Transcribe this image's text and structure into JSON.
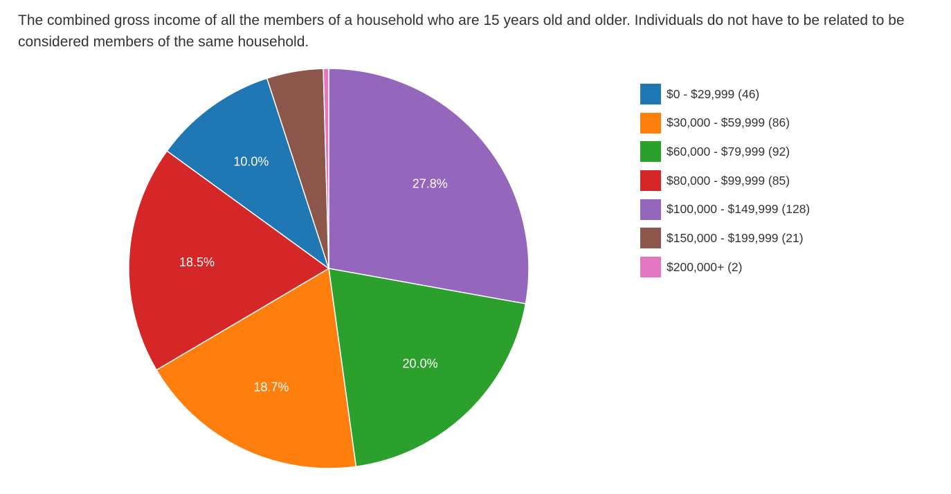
{
  "chart_data": {
    "type": "pie",
    "title": "The combined gross income of all the members of a household who are 15 years old and older. Individuals do not have to be related to be considered members of the same household.",
    "categories": [
      "$0 - $29,999",
      "$30,000 - $59,999",
      "$60,000 - $79,999",
      "$80,000 - $99,999",
      "$100,000 - $149,999",
      "$150,000 - $199,999",
      "$200,000+"
    ],
    "values": [
      46,
      86,
      92,
      85,
      128,
      21,
      2
    ],
    "percent_labels": [
      "10.0%",
      "18.7%",
      "20.0%",
      "18.5%",
      "27.8%",
      "",
      ""
    ],
    "colors": [
      "#1f77b4",
      "#ff7f0e",
      "#2ca02c",
      "#d62728",
      "#9467bd",
      "#8c564b",
      "#e377c2"
    ],
    "legend": {
      "placement": "right",
      "items": [
        "$0 - $29,999 (46)",
        "$30,000 - $59,999 (86)",
        "$60,000 - $79,999 (92)",
        "$80,000 - $99,999 (85)",
        "$100,000 - $149,999 (128)",
        "$150,000 - $199,999 (21)",
        "$200,000+ (2)"
      ]
    },
    "slice_order_clockwise_from_top": [
      "$100,000 - $149,999",
      "$60,000 - $79,999",
      "$30,000 - $59,999",
      "$80,000 - $99,999",
      "$0 - $29,999",
      "$150,000 - $199,999",
      "$200,000+"
    ]
  }
}
